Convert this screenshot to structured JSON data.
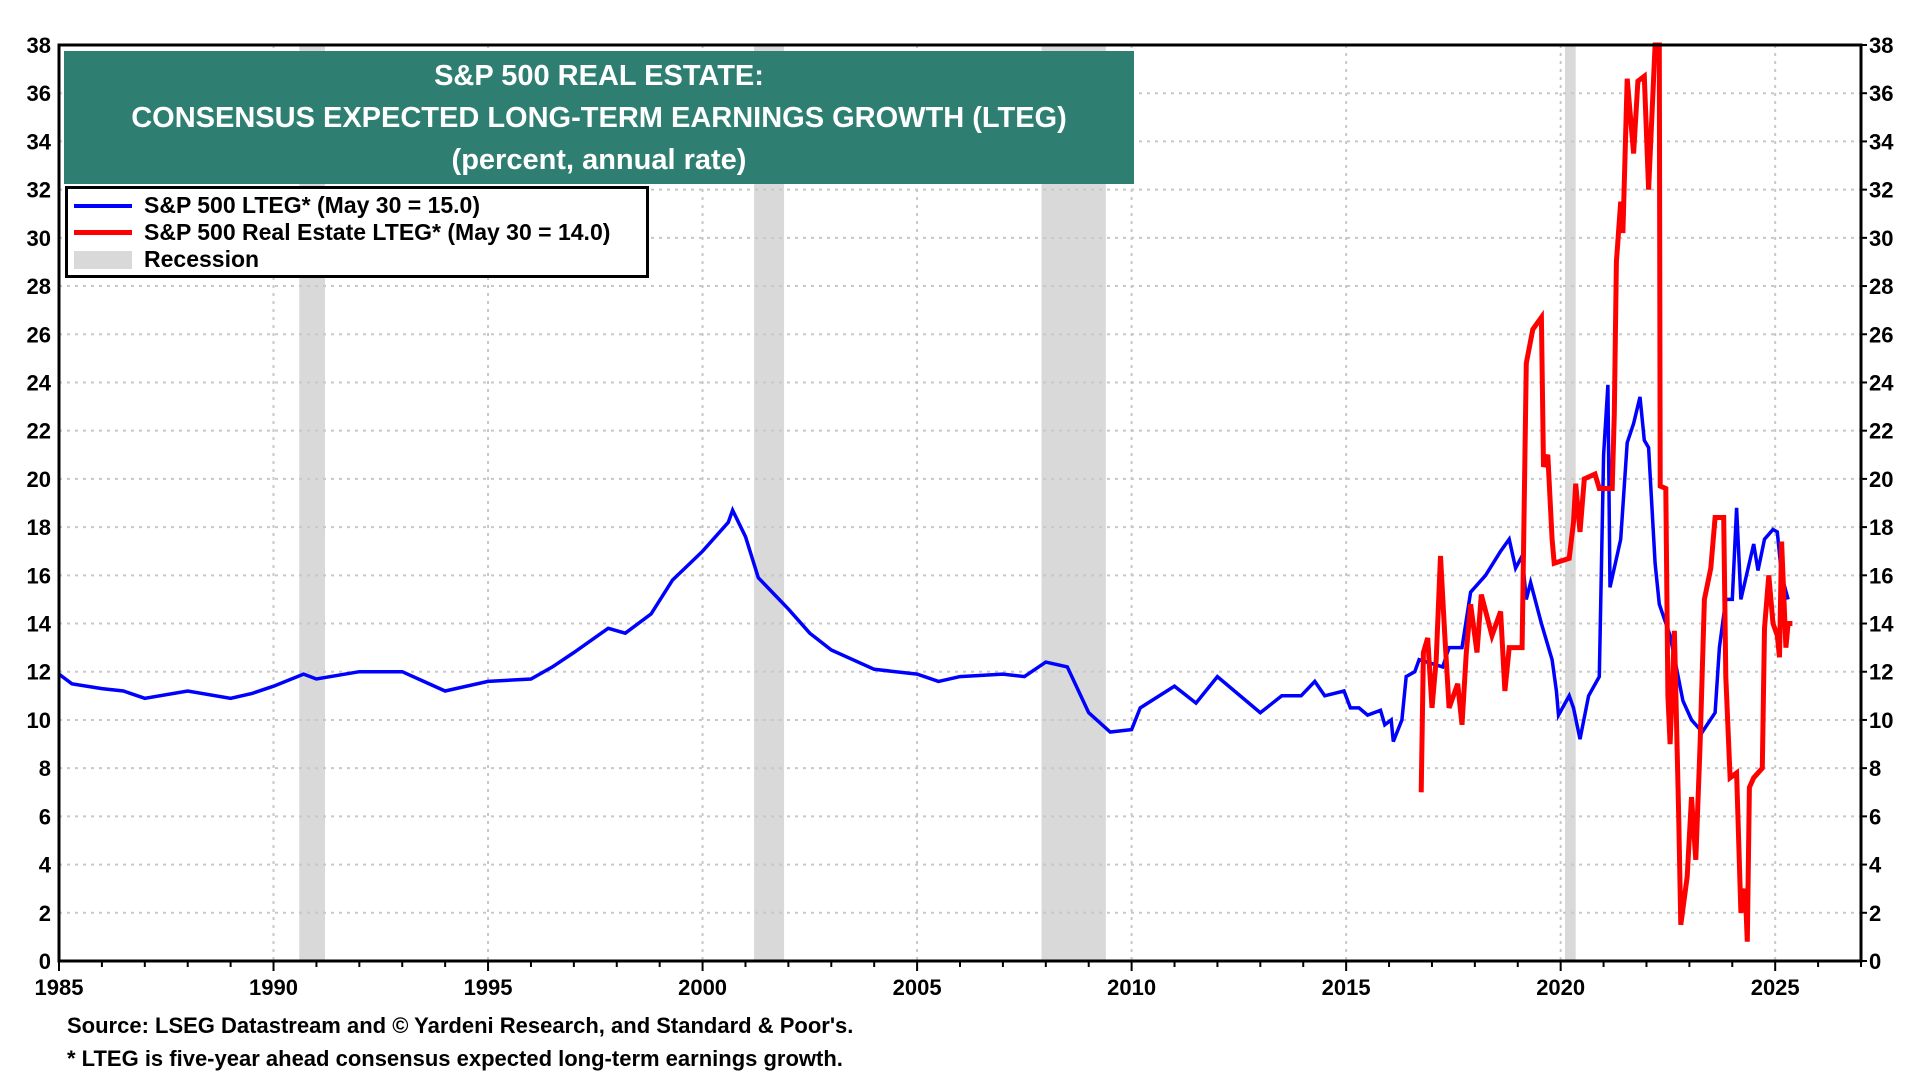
{
  "chart_data": {
    "type": "line",
    "title": [
      "S&P 500 REAL ESTATE:",
      "CONSENSUS EXPECTED LONG-TERM EARNINGS GROWTH (LTEG)",
      "(percent, annual rate)"
    ],
    "xlim": [
      1985,
      2027
    ],
    "ylim": [
      0,
      38
    ],
    "x_ticks": [
      1985,
      1990,
      1995,
      2000,
      2005,
      2010,
      2015,
      2020,
      2025
    ],
    "y_ticks": [
      0,
      2,
      4,
      6,
      8,
      10,
      12,
      14,
      16,
      18,
      20,
      22,
      24,
      26,
      28,
      30,
      32,
      34,
      36,
      38
    ],
    "grid": true,
    "legend_placement": "top-left",
    "recessions": [
      [
        1990.6,
        1991.2
      ],
      [
        2001.2,
        2001.9
      ],
      [
        2007.9,
        2009.4
      ],
      [
        2020.1,
        2020.35
      ]
    ],
    "recession_label": "Recession",
    "colors": {
      "blue": "#0000ff",
      "red": "#ff0000",
      "recession": "#d9d9d9",
      "title_bg": "#2e7f72"
    },
    "series": [
      {
        "name": "S&P 500 LTEG* (May 30 = 15.0)",
        "color": "#0000ff",
        "points": [
          [
            1985,
            11.9
          ],
          [
            1985.3,
            11.5
          ],
          [
            1986,
            11.3
          ],
          [
            1986.5,
            11.2
          ],
          [
            1987,
            10.9
          ],
          [
            1988,
            11.2
          ],
          [
            1989,
            10.9
          ],
          [
            1989.5,
            11.1
          ],
          [
            1990,
            11.4
          ],
          [
            1990.7,
            11.9
          ],
          [
            1991,
            11.7
          ],
          [
            1992,
            12.0
          ],
          [
            1993,
            12.0
          ],
          [
            1993.5,
            11.6
          ],
          [
            1994,
            11.2
          ],
          [
            1995,
            11.6
          ],
          [
            1996,
            11.7
          ],
          [
            1996.5,
            12.2
          ],
          [
            1997,
            12.8
          ],
          [
            1997.8,
            13.8
          ],
          [
            1998.2,
            13.6
          ],
          [
            1998.8,
            14.4
          ],
          [
            1999.3,
            15.8
          ],
          [
            2000,
            17.0
          ],
          [
            2000.6,
            18.2
          ],
          [
            2000.7,
            18.7
          ],
          [
            2001,
            17.6
          ],
          [
            2001.3,
            15.9
          ],
          [
            2002,
            14.6
          ],
          [
            2002.5,
            13.6
          ],
          [
            2003,
            12.9
          ],
          [
            2004,
            12.1
          ],
          [
            2005,
            11.9
          ],
          [
            2005.5,
            11.6
          ],
          [
            2006,
            11.8
          ],
          [
            2007,
            11.9
          ],
          [
            2007.5,
            11.8
          ],
          [
            2008,
            12.4
          ],
          [
            2008.5,
            12.2
          ],
          [
            2009,
            10.3
          ],
          [
            2009.5,
            9.5
          ],
          [
            2010,
            9.6
          ],
          [
            2010.2,
            10.5
          ],
          [
            2011,
            11.4
          ],
          [
            2011.5,
            10.7
          ],
          [
            2012,
            11.8
          ],
          [
            2013,
            10.3
          ],
          [
            2013.5,
            11.0
          ],
          [
            2013.95,
            11.0
          ],
          [
            2014.27,
            11.6
          ],
          [
            2014.5,
            11.0
          ],
          [
            2014.95,
            11.2
          ],
          [
            2015.1,
            10.5
          ],
          [
            2015.3,
            10.5
          ],
          [
            2015.5,
            10.2
          ],
          [
            2015.8,
            10.4
          ],
          [
            2015.9,
            9.8
          ],
          [
            2016.05,
            10.0
          ],
          [
            2016.1,
            9.1
          ],
          [
            2016.3,
            10.0
          ],
          [
            2016.4,
            11.8
          ],
          [
            2016.6,
            12.0
          ],
          [
            2016.7,
            12.5
          ],
          [
            2017.25,
            12.2
          ],
          [
            2017.4,
            13.0
          ],
          [
            2017.7,
            13.0
          ],
          [
            2017.9,
            15.3
          ],
          [
            2018.25,
            16.0
          ],
          [
            2018.6,
            17.0
          ],
          [
            2018.8,
            17.5
          ],
          [
            2018.95,
            16.3
          ],
          [
            2019.1,
            16.8
          ],
          [
            2019.2,
            15.0
          ],
          [
            2019.3,
            15.7
          ],
          [
            2019.55,
            14.0
          ],
          [
            2019.8,
            12.5
          ],
          [
            2019.9,
            11.2
          ],
          [
            2019.95,
            10.2
          ],
          [
            2020.2,
            11.0
          ],
          [
            2020.3,
            10.5
          ],
          [
            2020.45,
            9.2
          ],
          [
            2020.65,
            11.0
          ],
          [
            2020.9,
            11.8
          ],
          [
            2021.0,
            21.0
          ],
          [
            2021.1,
            23.9
          ],
          [
            2021.15,
            15.5
          ],
          [
            2021.4,
            17.5
          ],
          [
            2021.55,
            21.5
          ],
          [
            2021.7,
            22.3
          ],
          [
            2021.85,
            23.4
          ],
          [
            2021.95,
            21.6
          ],
          [
            2022.05,
            21.3
          ],
          [
            2022.2,
            16.5
          ],
          [
            2022.3,
            14.8
          ],
          [
            2022.55,
            13.5
          ],
          [
            2022.85,
            10.8
          ],
          [
            2023.05,
            10.0
          ],
          [
            2023.3,
            9.5
          ],
          [
            2023.6,
            10.3
          ],
          [
            2023.7,
            13.0
          ],
          [
            2023.85,
            15.0
          ],
          [
            2024.0,
            15.0
          ],
          [
            2024.1,
            18.8
          ],
          [
            2024.2,
            15.0
          ],
          [
            2024.5,
            17.3
          ],
          [
            2024.6,
            16.2
          ],
          [
            2024.75,
            17.5
          ],
          [
            2024.95,
            17.9
          ],
          [
            2025.05,
            17.8
          ],
          [
            2025.15,
            16.0
          ],
          [
            2025.3,
            15.0
          ]
        ]
      },
      {
        "name": "S&P 500 Real Estate LTEG* (May 30 = 14.0)",
        "color": "#ff0000",
        "points": [
          [
            2016.75,
            7.0
          ],
          [
            2016.8,
            12.8
          ],
          [
            2016.9,
            13.4
          ],
          [
            2017.0,
            10.5
          ],
          [
            2017.1,
            12.5
          ],
          [
            2017.2,
            16.8
          ],
          [
            2017.3,
            13.5
          ],
          [
            2017.4,
            10.5
          ],
          [
            2017.6,
            11.5
          ],
          [
            2017.7,
            9.8
          ],
          [
            2017.8,
            12.8
          ],
          [
            2017.9,
            14.8
          ],
          [
            2018.05,
            12.8
          ],
          [
            2018.15,
            15.2
          ],
          [
            2018.4,
            13.5
          ],
          [
            2018.6,
            14.5
          ],
          [
            2018.7,
            11.2
          ],
          [
            2018.8,
            13.0
          ],
          [
            2019.1,
            13.0
          ],
          [
            2019.2,
            24.8
          ],
          [
            2019.35,
            26.2
          ],
          [
            2019.55,
            26.7
          ],
          [
            2019.6,
            20.5
          ],
          [
            2019.7,
            21.0
          ],
          [
            2019.8,
            17.5
          ],
          [
            2019.85,
            16.5
          ],
          [
            2020.2,
            16.7
          ],
          [
            2020.3,
            18.2
          ],
          [
            2020.35,
            19.8
          ],
          [
            2020.45,
            17.8
          ],
          [
            2020.55,
            20.0
          ],
          [
            2020.8,
            20.2
          ],
          [
            2020.9,
            19.6
          ],
          [
            2021.2,
            19.6
          ],
          [
            2021.25,
            22.7
          ],
          [
            2021.3,
            29.0
          ],
          [
            2021.4,
            31.5
          ],
          [
            2021.45,
            30.2
          ],
          [
            2021.55,
            36.6
          ],
          [
            2021.7,
            33.5
          ],
          [
            2021.8,
            36.5
          ],
          [
            2021.95,
            36.7
          ],
          [
            2022.05,
            32.0
          ],
          [
            2022.2,
            38.0
          ],
          [
            2022.3,
            38.0
          ],
          [
            2022.32,
            19.7
          ],
          [
            2022.45,
            19.6
          ],
          [
            2022.5,
            11.0
          ],
          [
            2022.55,
            9.0
          ],
          [
            2022.65,
            13.7
          ],
          [
            2022.75,
            6.0
          ],
          [
            2022.8,
            1.5
          ],
          [
            2022.95,
            3.5
          ],
          [
            2023.05,
            6.8
          ],
          [
            2023.15,
            4.2
          ],
          [
            2023.25,
            9.0
          ],
          [
            2023.35,
            15.0
          ],
          [
            2023.5,
            16.3
          ],
          [
            2023.6,
            18.4
          ],
          [
            2023.8,
            18.4
          ],
          [
            2023.85,
            11.8
          ],
          [
            2023.95,
            7.6
          ],
          [
            2024.1,
            7.8
          ],
          [
            2024.2,
            2.0
          ],
          [
            2024.3,
            3.0
          ],
          [
            2024.35,
            0.8
          ],
          [
            2024.4,
            7.2
          ],
          [
            2024.5,
            7.6
          ],
          [
            2024.7,
            8.0
          ],
          [
            2024.75,
            13.8
          ],
          [
            2024.85,
            16.0
          ],
          [
            2024.95,
            14.0
          ],
          [
            2025.05,
            13.5
          ],
          [
            2025.1,
            12.6
          ],
          [
            2025.15,
            17.4
          ],
          [
            2025.25,
            13.0
          ],
          [
            2025.3,
            14.0
          ],
          [
            2025.4,
            14.0
          ]
        ]
      }
    ],
    "footnotes": [
      "Source: LSEG Datastream and © Yardeni Research, and Standard & Poor's.",
      "* LTEG is five-year ahead consensus expected long-term earnings growth."
    ]
  }
}
